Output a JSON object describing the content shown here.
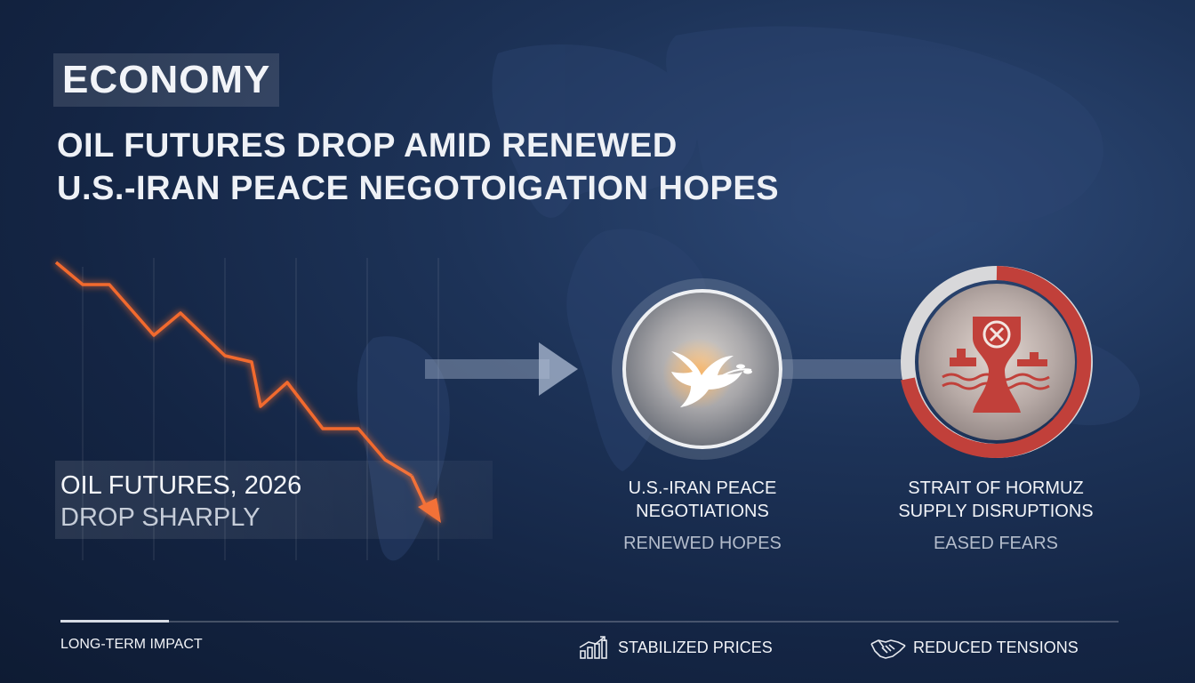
{
  "section_tag": "ECONOMY",
  "headline": {
    "line1": "OIL FUTURES DROP AMID RENEWED",
    "line2": "U.S.-IRAN PEACE NEGOTOIGATION HOPES"
  },
  "chart_data": {
    "type": "line",
    "title": "OIL FUTURES, 2026",
    "subtitle": "DROP SHARPLY",
    "trend": "down",
    "line_color": "#f26a2e"
  },
  "factors": [
    {
      "icon": "dove-icon",
      "caption_line1": "U.S.-IRAN PEACE",
      "caption_line2": "NEGOTIATIONS",
      "sub": "RENEWED HOPES"
    },
    {
      "icon": "strait-shipping-icon",
      "caption_line1": "STRAIT OF HORMUZ",
      "caption_line2": "SUPPLY DISRUPTIONS",
      "sub": "EASED FEARS"
    }
  ],
  "footer": {
    "label": "LONG-TERM IMPACT",
    "items": [
      {
        "icon": "rising-bar-chart-icon",
        "label": "STABILIZED PRICES"
      },
      {
        "icon": "handshake-icon",
        "label": "REDUCED TENSIONS"
      }
    ]
  },
  "colors": {
    "accent_orange": "#f26a2e",
    "hormuz_red": "#c1403a",
    "background": "#16284a"
  }
}
